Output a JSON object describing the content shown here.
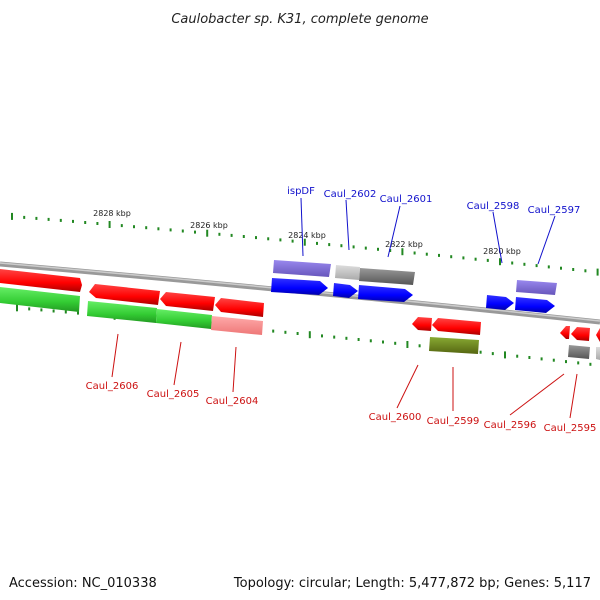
{
  "title": "Caulobacter sp. K31, complete genome",
  "footer": {
    "accession": "Accession: NC_010338",
    "summary": "Topology: circular; Length: 5,477,872 bp; Genes: 5,117"
  },
  "scale_labels": [
    "2828 kbp",
    "2826 kbp",
    "2824 kbp",
    "2822 kbp",
    "2820 kbp"
  ],
  "forward_labels": [
    "ispDF",
    "Caul_2602",
    "Caul_2601",
    "Caul_2598",
    "Caul_2597"
  ],
  "reverse_labels": [
    "Caul_2606",
    "Caul_2605",
    "Caul_2604",
    "Caul_2600",
    "Caul_2599",
    "Caul_2596",
    "Caul_2595"
  ],
  "colors": {
    "forward_label": "#1111cc",
    "reverse_label": "#cc1111",
    "cds_forward": "#0000ff",
    "cds_reverse": "#ff0000",
    "gene": "#33cc33",
    "rna": "#7766cc",
    "backbone": "#888888",
    "ticks": "#228822"
  }
}
